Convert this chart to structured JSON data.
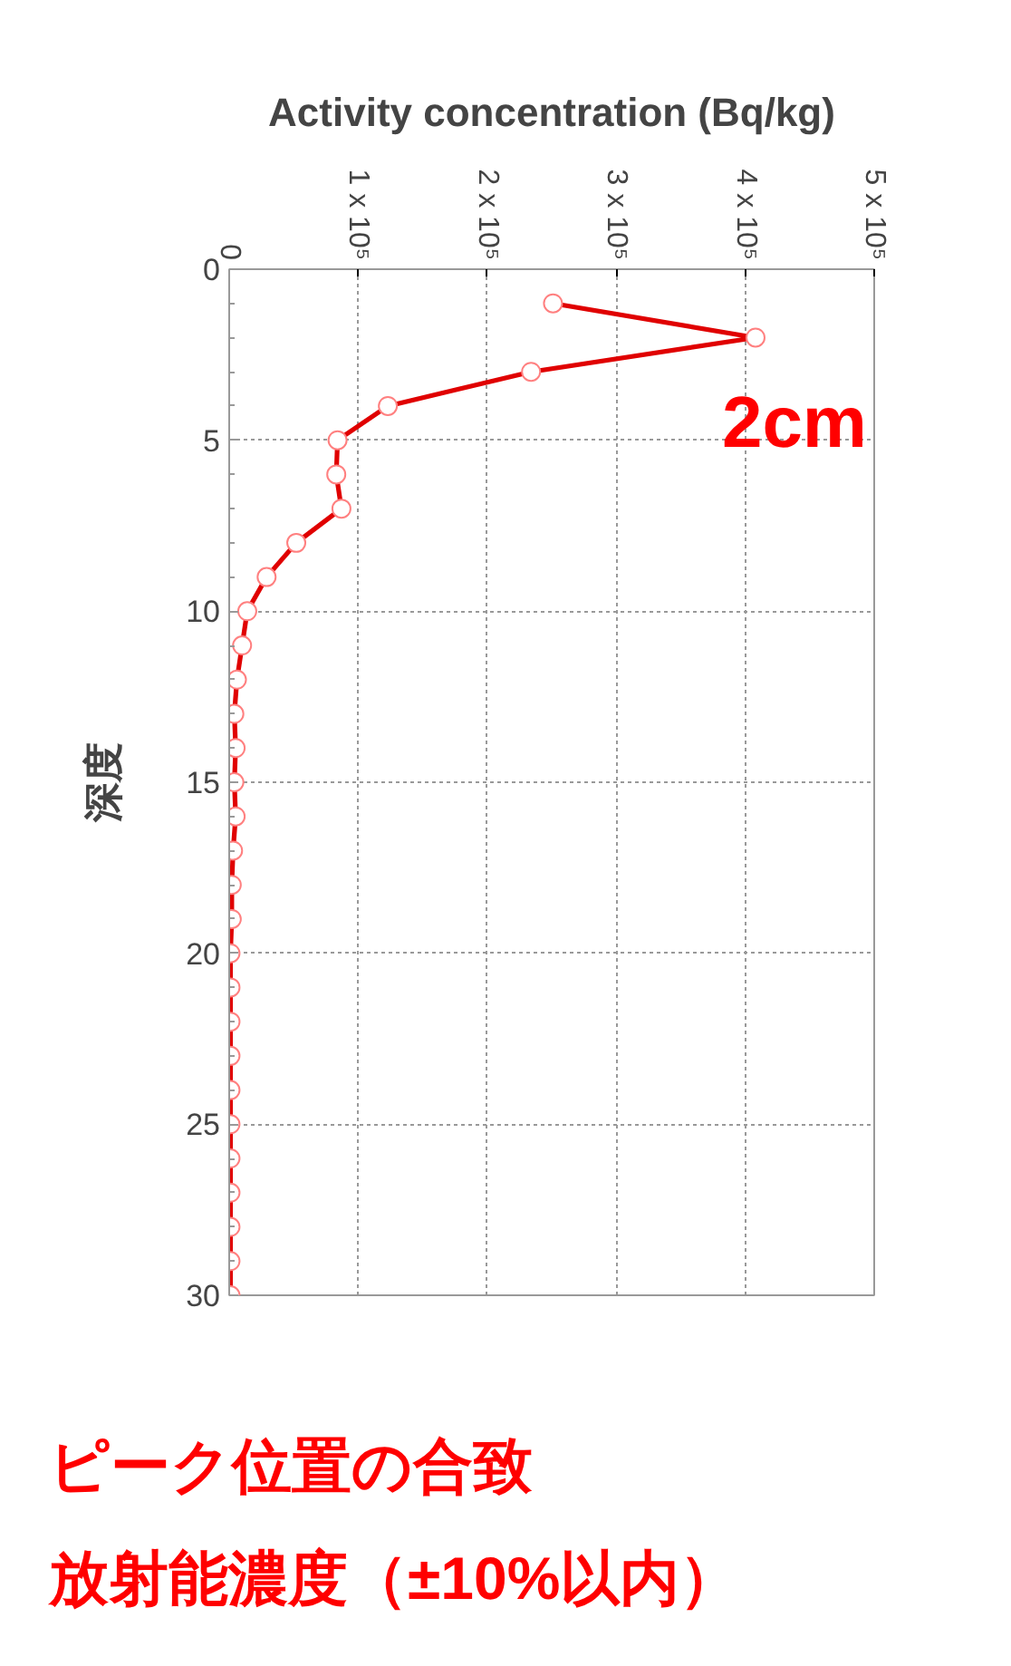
{
  "chart_data": {
    "type": "line",
    "xlabel": "Activity concentration (Bq/kg)",
    "ylabel": "深度",
    "orientation": "horizontal",
    "x": [
      1,
      2,
      3,
      4,
      5,
      6,
      7,
      8,
      9,
      10,
      11,
      12,
      13,
      14,
      15,
      16,
      17,
      18,
      19,
      20,
      21,
      22,
      23,
      24,
      25,
      26,
      27,
      28,
      29,
      30
    ],
    "series": [
      {
        "color": "#e00000",
        "values": [
          251000,
          408000,
          234000,
          123000,
          84000,
          83000,
          87000,
          52000,
          29000,
          14000,
          10000,
          6000,
          4000,
          5000,
          4000,
          5000,
          3000,
          2000,
          2000,
          1000,
          1000,
          1000,
          1000,
          1000,
          1000,
          1000,
          1000,
          1000,
          1000,
          1000
        ]
      }
    ],
    "xlim": [
      0,
      500000
    ],
    "xticks": [
      0,
      {
        "value": 100000,
        "label": "1 x 10⁵"
      },
      {
        "value": 200000,
        "label": "2 x 10⁵"
      },
      {
        "value": 300000,
        "label": "3 x 10⁵"
      },
      {
        "value": 400000,
        "label": "4 x 10⁵"
      },
      {
        "value": 500000,
        "label": "5 x 10⁵"
      }
    ],
    "ylim": [
      30,
      0
    ],
    "yticks": [
      0,
      5,
      10,
      15,
      20,
      25,
      30
    ],
    "grid": true,
    "marker": "circle",
    "line_style": "solid",
    "annotations": [
      "2cm",
      "ピーク位置の合致",
      "放射能濃度（±10%以内）"
    ]
  }
}
